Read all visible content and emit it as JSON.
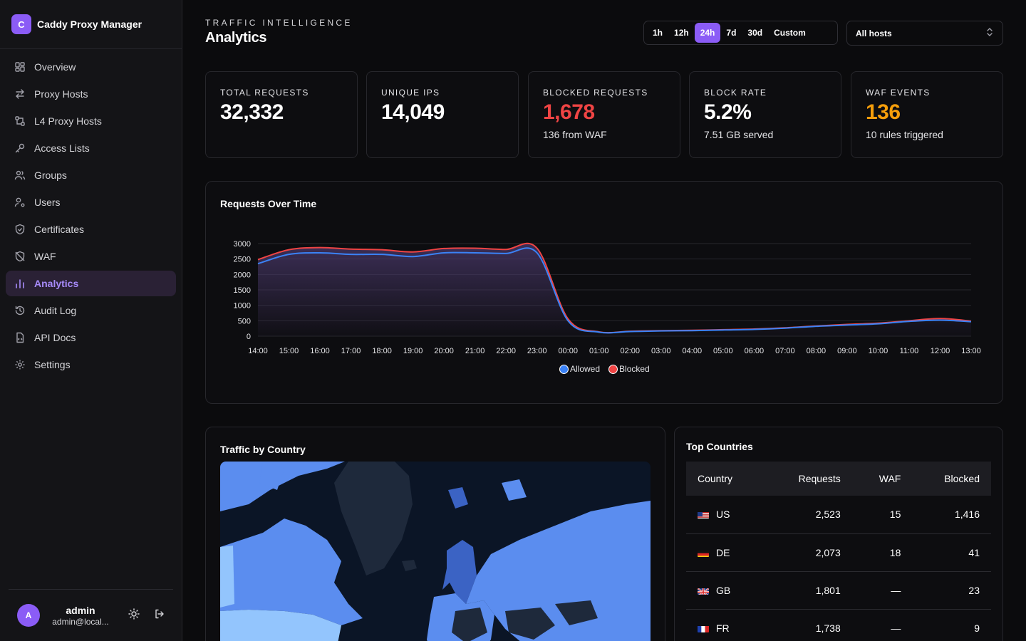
{
  "app": {
    "logo_letter": "C",
    "name": "Caddy Proxy Manager"
  },
  "sidebar": {
    "items": [
      {
        "label": "Overview",
        "icon": "grid-icon"
      },
      {
        "label": "Proxy Hosts",
        "icon": "arrows-swap-icon"
      },
      {
        "label": "L4 Proxy Hosts",
        "icon": "network-icon"
      },
      {
        "label": "Access Lists",
        "icon": "key-icon"
      },
      {
        "label": "Groups",
        "icon": "users-group-icon"
      },
      {
        "label": "Users",
        "icon": "user-gear-icon"
      },
      {
        "label": "Certificates",
        "icon": "shield-check-icon"
      },
      {
        "label": "WAF",
        "icon": "shield-off-icon"
      },
      {
        "label": "Analytics",
        "icon": "bar-chart-icon",
        "active": true
      },
      {
        "label": "Audit Log",
        "icon": "history-icon"
      },
      {
        "label": "API Docs",
        "icon": "code-file-icon"
      },
      {
        "label": "Settings",
        "icon": "gear-icon"
      }
    ]
  },
  "user": {
    "avatar_letter": "A",
    "name": "admin",
    "email": "admin@local..."
  },
  "header": {
    "eyebrow": "TRAFFIC INTELLIGENCE",
    "title": "Analytics"
  },
  "time_ranges": [
    {
      "label": "1h"
    },
    {
      "label": "12h"
    },
    {
      "label": "24h",
      "active": true
    },
    {
      "label": "7d"
    },
    {
      "label": "30d"
    },
    {
      "label": "Custom"
    }
  ],
  "host_filter": {
    "selected": "All hosts"
  },
  "stats": [
    {
      "label": "TOTAL REQUESTS",
      "value": "32,332",
      "sub": "",
      "color": "#ffffff"
    },
    {
      "label": "UNIQUE IPS",
      "value": "14,049",
      "sub": "",
      "color": "#ffffff"
    },
    {
      "label": "BLOCKED REQUESTS",
      "value": "1,678",
      "sub": "136 from WAF",
      "color": "#ef4444"
    },
    {
      "label": "BLOCK RATE",
      "value": "5.2%",
      "sub": "7.51 GB served",
      "color": "#ffffff"
    },
    {
      "label": "WAF EVENTS",
      "value": "136",
      "sub": "10 rules triggered",
      "color": "#f59e0b"
    }
  ],
  "requests_panel": {
    "title": "Requests Over Time"
  },
  "chart_data": {
    "type": "area",
    "title": "Requests Over Time",
    "x": [
      "14:00",
      "15:00",
      "16:00",
      "17:00",
      "18:00",
      "19:00",
      "20:00",
      "21:00",
      "22:00",
      "23:00",
      "00:00",
      "01:00",
      "02:00",
      "03:00",
      "04:00",
      "05:00",
      "06:00",
      "07:00",
      "08:00",
      "09:00",
      "10:00",
      "11:00",
      "12:00",
      "13:00"
    ],
    "ylim": [
      0,
      3000
    ],
    "yticks": [
      "3000",
      "2500",
      "2000",
      "1500",
      "1000",
      "500",
      "0"
    ],
    "series": [
      {
        "name": "Allowed",
        "color": "#3b82f6",
        "values": [
          2350,
          2650,
          2700,
          2650,
          2650,
          2580,
          2700,
          2700,
          2680,
          2700,
          500,
          130,
          150,
          170,
          180,
          200,
          220,
          260,
          320,
          360,
          400,
          480,
          520,
          470
        ]
      },
      {
        "name": "Blocked",
        "color": "#ef4444",
        "values": [
          2480,
          2800,
          2870,
          2820,
          2800,
          2730,
          2840,
          2850,
          2810,
          2850,
          560,
          140,
          160,
          180,
          190,
          210,
          230,
          270,
          330,
          380,
          420,
          500,
          570,
          490
        ]
      }
    ],
    "legend": "bottom-center",
    "grid": true
  },
  "country_map": {
    "title": "Traffic by Country"
  },
  "top_countries": {
    "title": "Top Countries",
    "columns": [
      "Country",
      "Requests",
      "WAF",
      "Blocked"
    ],
    "rows": [
      {
        "code": "US",
        "requests": "2,523",
        "waf": "15",
        "blocked": "1,416"
      },
      {
        "code": "DE",
        "requests": "2,073",
        "waf": "18",
        "blocked": "41"
      },
      {
        "code": "GB",
        "requests": "1,801",
        "waf": "—",
        "blocked": "23"
      },
      {
        "code": "FR",
        "requests": "1,738",
        "waf": "—",
        "blocked": "9"
      }
    ]
  }
}
